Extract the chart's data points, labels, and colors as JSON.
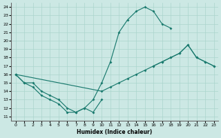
{
  "bg_color": "#cce8e4",
  "grid_color": "#aad4cc",
  "line_color": "#1a7a6e",
  "xlabel": "Humidex (Indice chaleur)",
  "xlim": [
    -0.5,
    23.5
  ],
  "ylim": [
    10.5,
    24.5
  ],
  "yticks": [
    11,
    12,
    13,
    14,
    15,
    16,
    17,
    18,
    19,
    20,
    21,
    22,
    23,
    24
  ],
  "xticks": [
    0,
    1,
    2,
    3,
    4,
    5,
    6,
    7,
    8,
    9,
    10,
    11,
    12,
    13,
    14,
    15,
    16,
    17,
    18,
    19,
    20,
    21,
    22,
    23
  ],
  "curve_big_x": [
    0,
    1,
    2,
    3,
    4,
    5,
    6,
    7,
    8,
    9,
    10,
    11,
    12,
    13,
    14,
    15,
    16,
    17,
    18
  ],
  "curve_big_y": [
    16,
    15,
    15,
    14,
    13.5,
    13,
    12,
    11.5,
    12,
    13,
    15,
    17.5,
    21,
    22.5,
    23.5,
    24,
    23.5,
    22,
    21.5
  ],
  "curve_diag_x": [
    0,
    10,
    11,
    12,
    13,
    14,
    15,
    16,
    17,
    18,
    19,
    20,
    21,
    22,
    23
  ],
  "curve_diag_y": [
    16,
    14,
    14.5,
    15,
    15.5,
    16,
    16.5,
    17,
    17.5,
    18,
    18.5,
    19.5,
    18,
    17.5,
    17
  ],
  "curve_right_x": [
    16,
    17,
    18,
    19,
    20,
    21,
    22,
    23
  ],
  "curve_right_y": [
    17,
    17.5,
    18,
    18.5,
    19.5,
    18,
    17.5,
    17
  ],
  "curve_low_x": [
    0,
    1,
    2,
    3,
    4,
    5,
    6,
    7,
    8,
    9,
    10
  ],
  "curve_low_y": [
    16,
    15,
    14.5,
    13.5,
    13,
    12.5,
    11.5,
    11.5,
    12,
    11.5,
    13
  ]
}
